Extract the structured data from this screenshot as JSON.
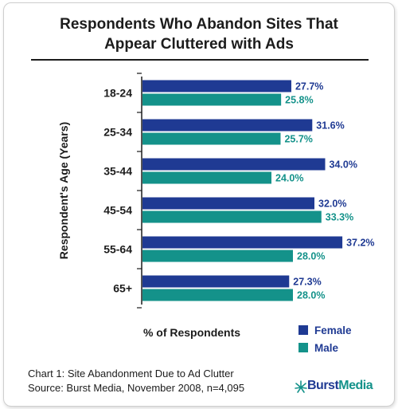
{
  "chart_data": {
    "type": "bar",
    "orientation": "horizontal",
    "title": "Respondents Who Abandon Sites That Appear Cluttered with Ads",
    "title_lines": [
      "Respondents Who Abandon Sites That",
      "Appear Cluttered with Ads"
    ],
    "xlabel": "% of Respondents",
    "ylabel": "Respondent's Age (Years)",
    "categories": [
      "18-24",
      "25-34",
      "35-44",
      "45-54",
      "55-64",
      "65+"
    ],
    "series": [
      {
        "name": "Female",
        "color": "#1f3a93",
        "values": [
          27.7,
          31.6,
          34.0,
          32.0,
          37.2,
          27.3
        ],
        "labels": [
          "27.7%",
          "31.6%",
          "34.0%",
          "32.0%",
          "37.2%",
          "27.3%"
        ]
      },
      {
        "name": "Male",
        "color": "#14928a",
        "values": [
          25.8,
          25.7,
          24.0,
          33.3,
          28.0,
          28.0
        ],
        "labels": [
          "25.8%",
          "25.7%",
          "24.0%",
          "33.3%",
          "28.0%",
          "28.0%"
        ]
      }
    ],
    "xlim": [
      0,
      40
    ],
    "grid": false,
    "legend_position": "bottom-right"
  },
  "footer": {
    "line1": "Chart 1: Site Abandonment Due to Ad Clutter",
    "line2": "Source: Burst Media, November 2008, n=4,095"
  },
  "logo": {
    "text_part1": "Burst",
    "text_part2": "Media",
    "color_part1": "#1f3a93",
    "color_part2": "#14928a"
  }
}
